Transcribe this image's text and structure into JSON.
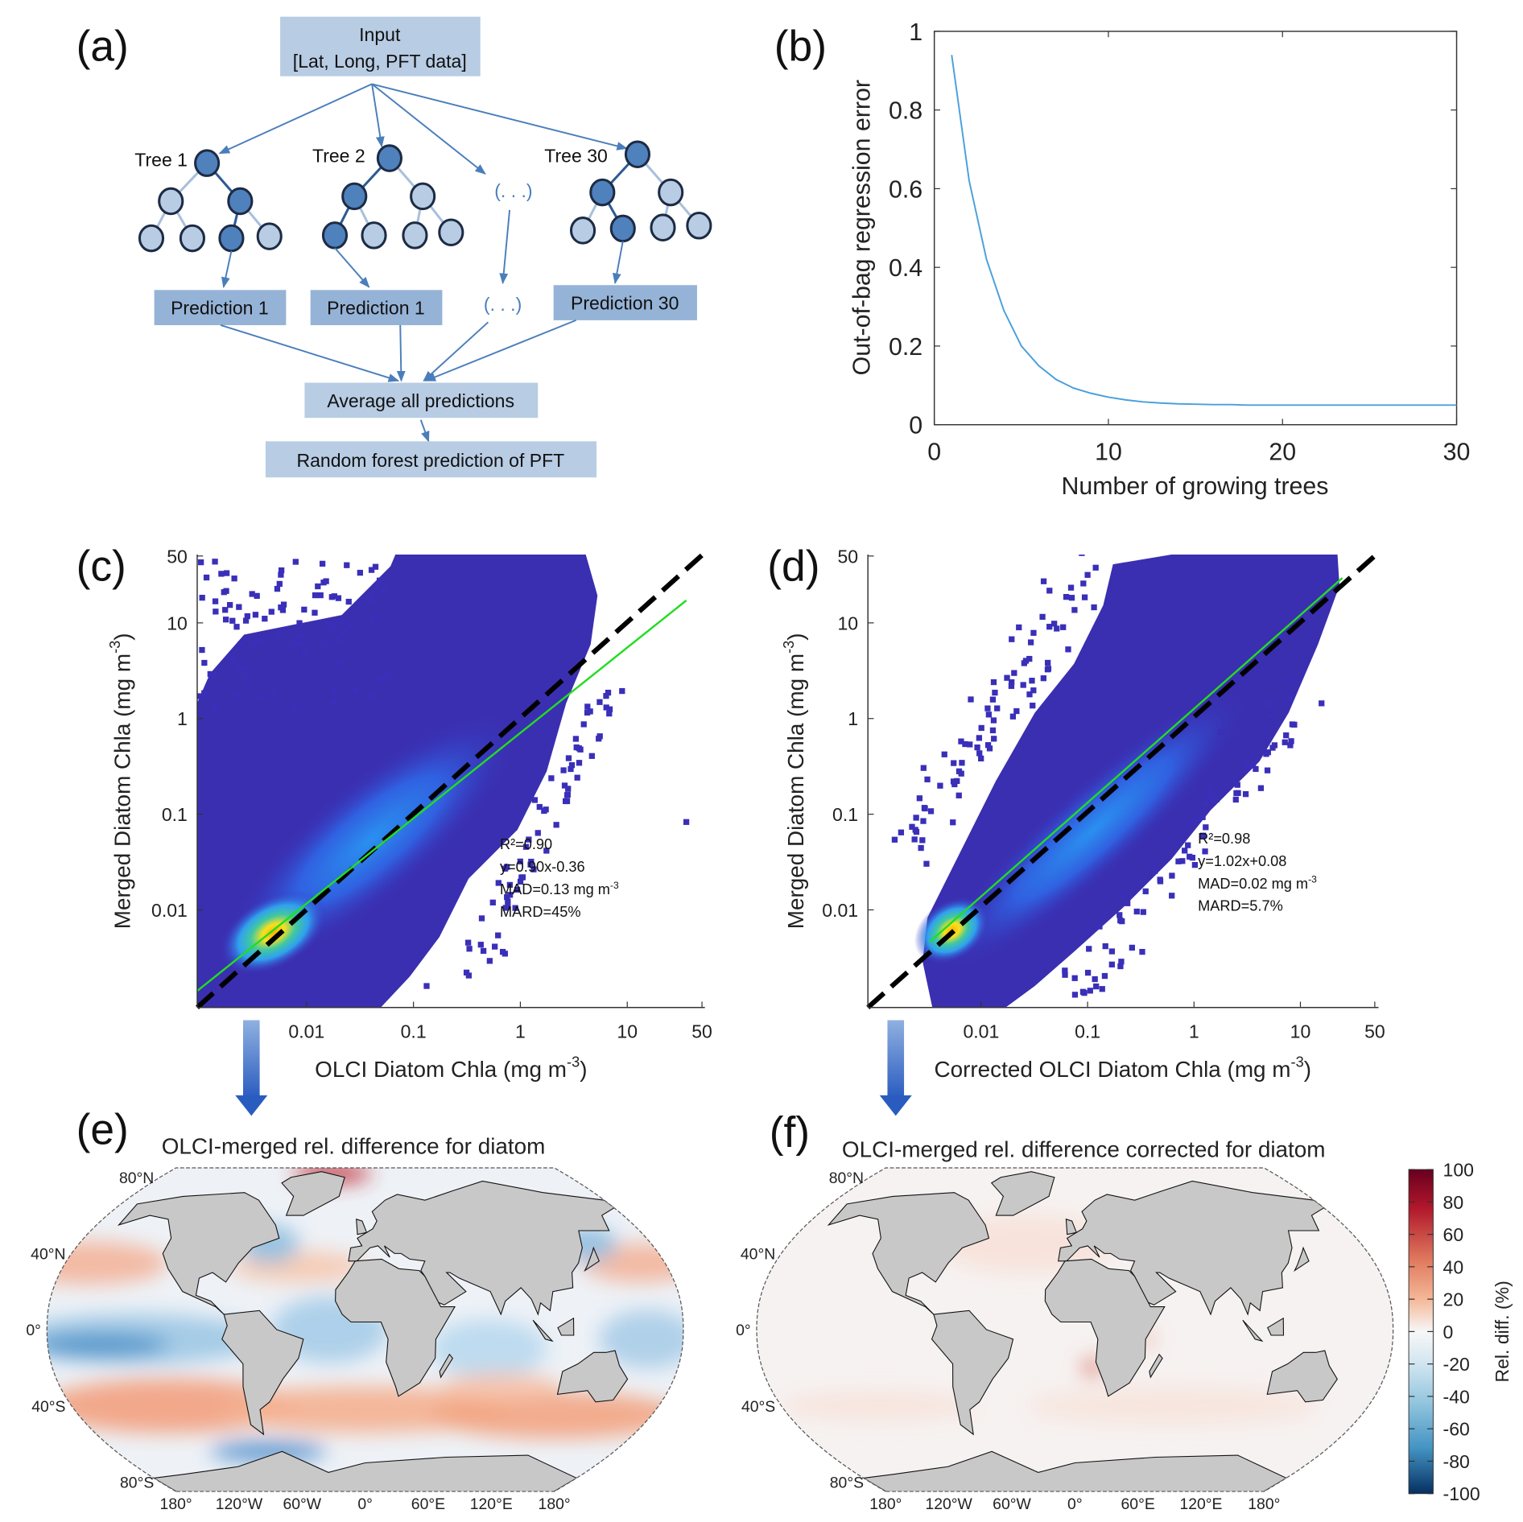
{
  "panel_labels": {
    "a": "(a)",
    "b": "(b)",
    "c": "(c)",
    "d": "(d)",
    "e": "(e)",
    "f": "(f)"
  },
  "diagram": {
    "input_line1": "Input",
    "input_line2": "[Lat, Long, PFT data]",
    "trees": [
      "Tree 1",
      "Tree 2",
      "Tree 30"
    ],
    "ellipsis": "(. . .)",
    "predictions": [
      "Prediction 1",
      "Prediction 1",
      "Prediction 30"
    ],
    "average": "Average all predictions",
    "result": "Random forest prediction of PFT",
    "colors": {
      "box_light": "#b8cce4",
      "box_dark": "#95b3d7",
      "node_dark": "#4f81bd",
      "arrow": "#4a7ebb"
    }
  },
  "chart_data": [
    {
      "id": "b",
      "type": "line",
      "xlabel": "Number of growing trees",
      "ylabel": "Out-of-bag regression error",
      "xlim": [
        0,
        30
      ],
      "ylim": [
        0,
        1
      ],
      "xticks": [
        "0",
        "10",
        "20",
        "30"
      ],
      "yticks": [
        "0",
        "0.2",
        "0.4",
        "0.6",
        "0.8",
        "1"
      ],
      "color": "#4a9fdc",
      "x": [
        1,
        2,
        3,
        4,
        5,
        6,
        7,
        8,
        9,
        10,
        11,
        12,
        13,
        14,
        15,
        16,
        17,
        18,
        19,
        20,
        21,
        22,
        23,
        24,
        25,
        26,
        27,
        28,
        29,
        30
      ],
      "y": [
        0.94,
        0.62,
        0.42,
        0.29,
        0.2,
        0.15,
        0.115,
        0.093,
        0.08,
        0.07,
        0.063,
        0.058,
        0.055,
        0.053,
        0.052,
        0.051,
        0.051,
        0.05,
        0.05,
        0.05,
        0.05,
        0.05,
        0.05,
        0.05,
        0.05,
        0.05,
        0.05,
        0.05,
        0.05,
        0.05
      ]
    },
    {
      "id": "c",
      "type": "scatter",
      "xscale": "log",
      "yscale": "log",
      "xlim": [
        0.001,
        50
      ],
      "ylim": [
        0.001,
        50
      ],
      "xticks": [
        "0.01",
        "0.1",
        "1",
        "10",
        "50"
      ],
      "yticks": [
        "50",
        "10",
        "1",
        "0.1",
        "0.01"
      ],
      "xlabel": {
        "prefix": "OLCI Diatom Chla (mg m",
        "sup": "-3",
        "suffix": ")"
      },
      "ylabel": {
        "prefix": "Merged Diatom Chla (mg m",
        "sup": "-3",
        "suffix": ")"
      },
      "stats": {
        "r2": "R²=0.90",
        "fit": "y=0.90x-0.36",
        "mad": "MAD=0.13 mg m",
        "mad_sup": "-3",
        "mard": "MARD=45%"
      },
      "fit_line": {
        "slope": 0.9,
        "intercept": -0.36,
        "color": "#22dd22"
      },
      "one_to_one": {
        "style": "dashed",
        "color": "#000000"
      },
      "density_peak": [
        0.006,
        0.006
      ]
    },
    {
      "id": "d",
      "type": "scatter",
      "xscale": "log",
      "yscale": "log",
      "xlim": [
        0.001,
        50
      ],
      "ylim": [
        0.001,
        50
      ],
      "xticks": [
        "0.01",
        "0.1",
        "1",
        "10",
        "50"
      ],
      "yticks": [
        "50",
        "10",
        "1",
        "0.1",
        "0.01"
      ],
      "xlabel": {
        "prefix": "Corrected OLCI Diatom Chla (mg m",
        "sup": "-3",
        "suffix": ")"
      },
      "ylabel": {
        "prefix": "Merged Diatom Chla (mg m",
        "sup": "-3",
        "suffix": ")"
      },
      "stats": {
        "r2": "R²=0.98",
        "fit": "y=1.02x+0.08",
        "mad": "MAD=0.02 mg m",
        "mad_sup": "-3",
        "mard": "MARD=5.7%"
      },
      "fit_line": {
        "slope": 1.02,
        "intercept": 0.08,
        "color": "#22dd22"
      },
      "one_to_one": {
        "style": "dashed",
        "color": "#000000"
      },
      "density_peak": [
        0.006,
        0.006
      ]
    },
    {
      "id": "e",
      "type": "heatmap",
      "title": "OLCI-merged rel. difference for diatom",
      "lat_ticks": [
        "80°N",
        "40°N",
        "0°",
        "40°S",
        "80°S"
      ],
      "lon_ticks": [
        "180°",
        "120°W",
        "60°W",
        "0°",
        "60°E",
        "120°E",
        "180°"
      ]
    },
    {
      "id": "f",
      "type": "heatmap",
      "title": "OLCI-merged rel. difference corrected for diatom",
      "lat_ticks": [
        "80°N",
        "40°N",
        "0°",
        "40°S",
        "80°S"
      ],
      "lon_ticks": [
        "180°",
        "120°W",
        "60°W",
        "0°",
        "60°E",
        "120°E",
        "180°"
      ],
      "colorbar": {
        "label": "Rel. diff. (%)",
        "range": [
          -100,
          100
        ],
        "ticks": [
          "100",
          "80",
          "60",
          "40",
          "20",
          "0",
          "-20",
          "-40",
          "-60",
          "-80",
          "-100"
        ],
        "colors": [
          "#67001f",
          "#c0303a",
          "#f4a582",
          "#fddbc7",
          "#f7f7f7",
          "#d1e5f0",
          "#92c5de",
          "#4393c3",
          "#053061"
        ]
      }
    }
  ]
}
